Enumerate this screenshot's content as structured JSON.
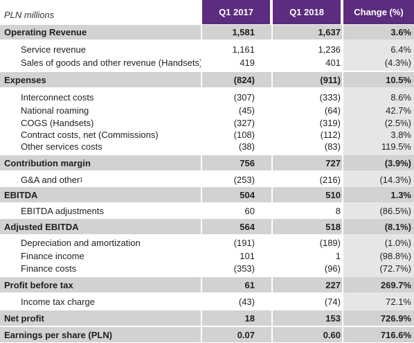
{
  "header": {
    "unit_label": "PLN millions",
    "col_q1_2017": "Q1 2017",
    "col_q1_2018": "Q1 2018",
    "col_change": "Change (%)"
  },
  "rows": [
    {
      "label": "Operating Revenue",
      "q1_2017": "1,581",
      "q1_2018": "1,637",
      "change": "3.6%"
    },
    {
      "label": "Service revenue",
      "q1_2017": "1,161",
      "q1_2018": "1,236",
      "change": "6.4%"
    },
    {
      "label": "Sales of goods and other revenue (Handsets)",
      "q1_2017": "419",
      "q1_2018": "401",
      "change": "(4.3%)"
    },
    {
      "label": "Expenses",
      "q1_2017": "(824)",
      "q1_2018": "(911)",
      "change": "10.5%"
    },
    {
      "label": "Interconnect costs",
      "q1_2017": "(307)",
      "q1_2018": "(333)",
      "change": "8.6%"
    },
    {
      "label": "National roaming",
      "q1_2017": "(45)",
      "q1_2018": "(64)",
      "change": "42.7%"
    },
    {
      "label": "COGS (Handsets)",
      "q1_2017": "(327)",
      "q1_2018": "(319)",
      "change": "(2.5%)"
    },
    {
      "label": "Contract costs, net (Commissions)",
      "q1_2017": "(108)",
      "q1_2018": "(112)",
      "change": "3.8%"
    },
    {
      "label": "Other services costs",
      "q1_2017": "(38)",
      "q1_2018": "(83)",
      "change": "119.5%"
    },
    {
      "label": "Contribution margin",
      "q1_2017": "756",
      "q1_2018": "727",
      "change": "(3.9%)"
    },
    {
      "label": "G&A and other",
      "footnote": "1",
      "q1_2017": "(253)",
      "q1_2018": "(216)",
      "change": "(14.3%)"
    },
    {
      "label": "EBITDA",
      "q1_2017": "504",
      "q1_2018": "510",
      "change": "1.3%"
    },
    {
      "label": "EBITDA adjustments",
      "q1_2017": "60",
      "q1_2018": "8",
      "change": "(86.5%)"
    },
    {
      "label": "Adjusted EBITDA",
      "q1_2017": "564",
      "q1_2018": "518",
      "change": "(8.1%)"
    },
    {
      "label": "Depreciation and amortization",
      "q1_2017": "(191)",
      "q1_2018": "(189)",
      "change": "(1.0%)"
    },
    {
      "label": "Finance income",
      "q1_2017": "101",
      "q1_2018": "1",
      "change": "(98.8%)"
    },
    {
      "label": "Finance costs",
      "q1_2017": "(353)",
      "q1_2018": "(96)",
      "change": "(72.7%)"
    },
    {
      "label": "Profit before tax",
      "q1_2017": "61",
      "q1_2018": "227",
      "change": "269.7%"
    },
    {
      "label": "Income tax charge",
      "q1_2017": "(43)",
      "q1_2018": "(74)",
      "change": "72.1%"
    },
    {
      "label": "Net profit",
      "q1_2017": "18",
      "q1_2018": "153",
      "change": "726.9%"
    },
    {
      "label": "Earnings per share (PLN)",
      "q1_2017": "0.07",
      "q1_2018": "0.60",
      "change": "716.6%"
    }
  ]
}
